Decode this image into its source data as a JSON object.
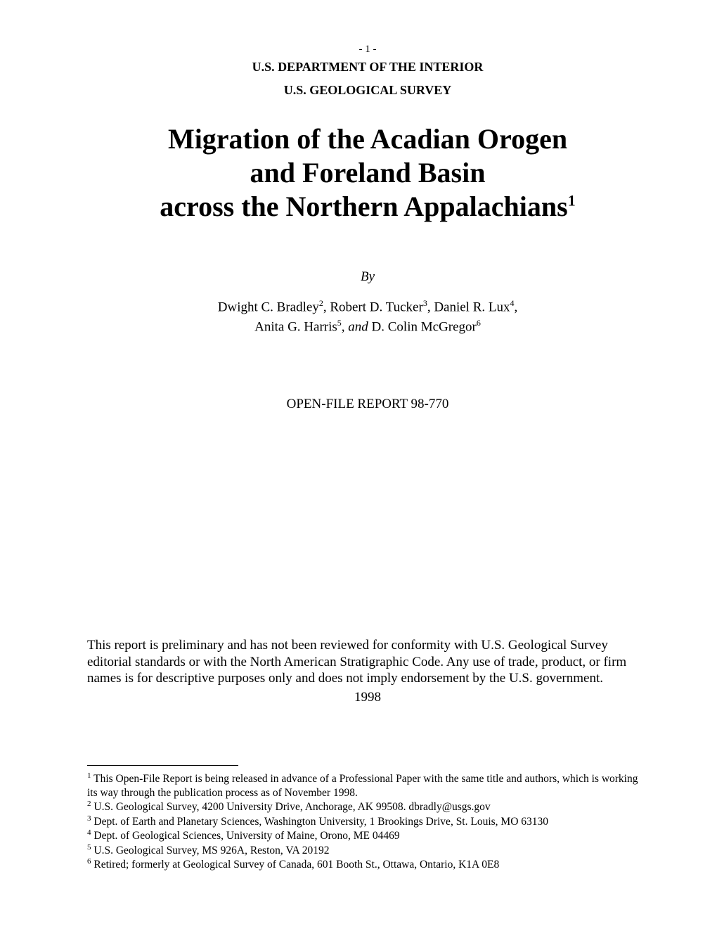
{
  "header": {
    "page_number": "- 1 -",
    "department": "U.S. DEPARTMENT OF THE INTERIOR",
    "survey": "U.S. GEOLOGICAL SURVEY"
  },
  "title": {
    "line1": "Migration of the Acadian Orogen",
    "line2": "and Foreland Basin",
    "line3": "across the Northern Appalachians",
    "footnote_marker": "1"
  },
  "by_label": "By",
  "authors": {
    "line1_part1": "Dwight C. Bradley",
    "marker2": "2",
    "line1_part2": ", Robert D. Tucker",
    "marker3": "3",
    "line1_part3": ", Daniel R. Lux",
    "marker4": "4",
    "line1_part4": ",",
    "line2_part1": "Anita G. Harris",
    "marker5": "5",
    "line2_part2": ", ",
    "and_word": "and",
    "line2_part3": " D. Colin McGregor",
    "marker6": "6"
  },
  "report": "OPEN-FILE REPORT 98-770",
  "disclaimer": "This report is preliminary and has not been reviewed for conformity with U.S. Geological Survey editorial standards or with the North American Stratigraphic Code. Any use of trade, product, or firm names is for descriptive purposes only and does not imply endorsement by the U.S. government.",
  "year": "1998",
  "footnotes": {
    "fn1_marker": "1",
    "fn1_text": " This Open-File Report is being released in advance of a Professional Paper with the same title and authors, which is working its way through the publication process as of November 1998.",
    "fn2_marker": "2",
    "fn2_text": " U.S. Geological Survey, 4200 University Drive, Anchorage, AK 99508.  dbradly@usgs.gov",
    "fn3_marker": "3",
    "fn3_text": " Dept. of Earth and Planetary Sciences, Washington University, 1 Brookings Drive, St. Louis, MO 63130",
    "fn4_marker": "4",
    "fn4_text": " Dept. of  Geological Sciences, University of Maine, Orono, ME 04469",
    "fn5_marker": "5",
    "fn5_text": " U.S. Geological Survey, MS 926A, Reston, VA 20192",
    "fn6_marker": "6",
    "fn6_text": " Retired; formerly at Geological Survey of Canada, 601 Booth St., Ottawa, Ontario, K1A 0E8"
  }
}
